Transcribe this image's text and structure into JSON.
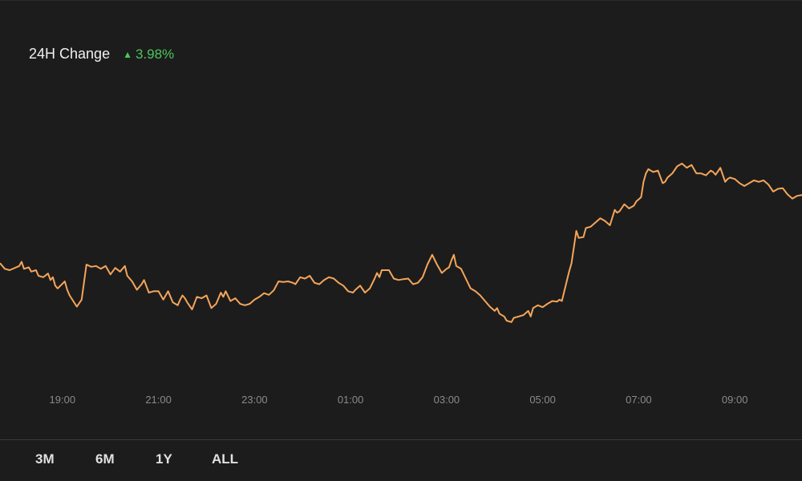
{
  "colors": {
    "background": "#1c1c1c",
    "line": "#f5a55a",
    "up": "#4cc75a",
    "tick": "#8a8a8a"
  },
  "header": {
    "label": "24H Change",
    "icon": "triangle-up-icon",
    "value": "3.98%"
  },
  "range_tabs": [
    "3M",
    "6M",
    "1Y",
    "ALL"
  ],
  "chart_data": {
    "type": "line",
    "title": "",
    "xlabel": "",
    "ylabel": "",
    "grid": false,
    "x_ticks": [
      "19:00",
      "21:00",
      "23:00",
      "01:00",
      "03:00",
      "05:00",
      "07:00",
      "09:00"
    ],
    "x_tick_hours": [
      19,
      21,
      23,
      25,
      27,
      29,
      31,
      33
    ],
    "x_range_hours": [
      17.7,
      34.4
    ],
    "y_range": [
      0,
      100
    ],
    "series": [
      {
        "values": [
          [
            17.7,
            40.5
          ],
          [
            17.8,
            38.5
          ],
          [
            17.9,
            38.0
          ],
          [
            18.1,
            39.5
          ],
          [
            18.15,
            41.0
          ],
          [
            18.2,
            38.5
          ],
          [
            18.3,
            39.0
          ],
          [
            18.35,
            37.5
          ],
          [
            18.45,
            38.0
          ],
          [
            18.5,
            36.0
          ],
          [
            18.6,
            35.5
          ],
          [
            18.7,
            36.8
          ],
          [
            18.75,
            34.5
          ],
          [
            18.8,
            35.5
          ],
          [
            18.85,
            32.5
          ],
          [
            18.9,
            31.5
          ],
          [
            19.05,
            34.0
          ],
          [
            19.1,
            31.0
          ],
          [
            19.15,
            29.0
          ],
          [
            19.3,
            25.0
          ],
          [
            19.4,
            27.5
          ],
          [
            19.5,
            40.0
          ],
          [
            19.6,
            39.2
          ],
          [
            19.7,
            39.5
          ],
          [
            19.8,
            38.5
          ],
          [
            19.9,
            39.5
          ],
          [
            20.0,
            36.5
          ],
          [
            20.1,
            38.8
          ],
          [
            20.2,
            37.5
          ],
          [
            20.3,
            39.5
          ],
          [
            20.35,
            36.0
          ],
          [
            20.45,
            34.0
          ],
          [
            20.55,
            31.0
          ],
          [
            20.65,
            33.0
          ],
          [
            20.7,
            34.5
          ],
          [
            20.8,
            30.0
          ],
          [
            20.9,
            30.5
          ],
          [
            21.0,
            30.5
          ],
          [
            21.05,
            29.0
          ],
          [
            21.1,
            27.5
          ],
          [
            21.2,
            30.5
          ],
          [
            21.3,
            26.5
          ],
          [
            21.4,
            25.5
          ],
          [
            21.45,
            27.5
          ],
          [
            21.5,
            29.0
          ],
          [
            21.55,
            28.0
          ],
          [
            21.6,
            26.5
          ],
          [
            21.7,
            24.0
          ],
          [
            21.8,
            28.5
          ],
          [
            21.9,
            28.0
          ],
          [
            22.0,
            29.0
          ],
          [
            22.1,
            24.5
          ],
          [
            22.2,
            26.0
          ],
          [
            22.3,
            30.0
          ],
          [
            22.35,
            28.5
          ],
          [
            22.4,
            30.5
          ],
          [
            22.5,
            27.0
          ],
          [
            22.6,
            28.0
          ],
          [
            22.7,
            26.0
          ],
          [
            22.8,
            25.5
          ],
          [
            22.9,
            26.0
          ],
          [
            23.0,
            27.5
          ],
          [
            23.1,
            28.5
          ],
          [
            23.2,
            29.8
          ],
          [
            23.3,
            29.2
          ],
          [
            23.4,
            30.8
          ],
          [
            23.5,
            34.0
          ],
          [
            23.6,
            33.8
          ],
          [
            23.7,
            34.0
          ],
          [
            23.8,
            33.5
          ],
          [
            23.85,
            33.0
          ],
          [
            23.95,
            35.5
          ],
          [
            24.05,
            35.0
          ],
          [
            24.15,
            36.0
          ],
          [
            24.25,
            33.5
          ],
          [
            24.35,
            33.0
          ],
          [
            24.45,
            34.5
          ],
          [
            24.55,
            35.5
          ],
          [
            24.65,
            35.0
          ],
          [
            24.75,
            33.5
          ],
          [
            24.85,
            32.5
          ],
          [
            24.95,
            30.5
          ],
          [
            25.05,
            30.0
          ],
          [
            25.1,
            31.0
          ],
          [
            25.2,
            32.5
          ],
          [
            25.3,
            30.0
          ],
          [
            25.4,
            31.5
          ],
          [
            25.5,
            35.0
          ],
          [
            25.55,
            37.0
          ],
          [
            25.6,
            35.5
          ],
          [
            25.65,
            38.0
          ],
          [
            25.8,
            38.0
          ],
          [
            25.9,
            35.0
          ],
          [
            26.0,
            34.5
          ],
          [
            26.1,
            34.8
          ],
          [
            26.2,
            35.0
          ],
          [
            26.3,
            33.0
          ],
          [
            26.4,
            33.5
          ],
          [
            26.5,
            35.5
          ],
          [
            26.6,
            40.0
          ],
          [
            26.7,
            43.5
          ],
          [
            26.8,
            40.0
          ],
          [
            26.9,
            37.0
          ],
          [
            27.0,
            38.5
          ],
          [
            27.05,
            39.0
          ],
          [
            27.1,
            41.5
          ],
          [
            27.15,
            43.5
          ],
          [
            27.2,
            39.5
          ],
          [
            27.3,
            38.5
          ],
          [
            27.4,
            35.0
          ],
          [
            27.5,
            31.5
          ],
          [
            27.6,
            30.5
          ],
          [
            27.7,
            29.0
          ],
          [
            27.8,
            27.0
          ],
          [
            27.9,
            25.0
          ],
          [
            28.0,
            23.5
          ],
          [
            28.05,
            24.5
          ],
          [
            28.1,
            22.5
          ],
          [
            28.2,
            21.5
          ],
          [
            28.25,
            20.0
          ],
          [
            28.35,
            19.5
          ],
          [
            28.4,
            21.0
          ],
          [
            28.5,
            21.5
          ],
          [
            28.6,
            22.0
          ],
          [
            28.7,
            23.5
          ],
          [
            28.75,
            21.5
          ],
          [
            28.8,
            24.5
          ],
          [
            28.9,
            25.5
          ],
          [
            29.0,
            24.8
          ],
          [
            29.1,
            26.0
          ],
          [
            29.2,
            27.0
          ],
          [
            29.3,
            26.8
          ],
          [
            29.35,
            27.5
          ],
          [
            29.4,
            27.0
          ],
          [
            29.5,
            34.0
          ],
          [
            29.55,
            37.5
          ],
          [
            29.6,
            40.5
          ],
          [
            29.7,
            52.0
          ],
          [
            29.75,
            49.5
          ],
          [
            29.85,
            49.8
          ],
          [
            29.9,
            53.0
          ],
          [
            30.0,
            53.5
          ],
          [
            30.1,
            55.0
          ],
          [
            30.2,
            56.5
          ],
          [
            30.3,
            55.5
          ],
          [
            30.4,
            54.0
          ],
          [
            30.5,
            59.5
          ],
          [
            30.55,
            58.5
          ],
          [
            30.6,
            59.0
          ],
          [
            30.7,
            61.5
          ],
          [
            30.8,
            60.0
          ],
          [
            30.9,
            61.0
          ],
          [
            30.95,
            62.5
          ],
          [
            31.05,
            64.0
          ],
          [
            31.1,
            69.5
          ],
          [
            31.15,
            72.5
          ],
          [
            31.2,
            74.0
          ],
          [
            31.3,
            73.0
          ],
          [
            31.4,
            73.5
          ],
          [
            31.5,
            69.0
          ],
          [
            31.55,
            69.5
          ],
          [
            31.6,
            71.0
          ],
          [
            31.7,
            72.5
          ],
          [
            31.8,
            75.0
          ],
          [
            31.9,
            76.0
          ],
          [
            32.0,
            74.5
          ],
          [
            32.1,
            75.5
          ],
          [
            32.2,
            72.5
          ],
          [
            32.3,
            72.5
          ],
          [
            32.4,
            71.8
          ],
          [
            32.5,
            73.5
          ],
          [
            32.55,
            73.0
          ],
          [
            32.6,
            72.0
          ],
          [
            32.7,
            74.5
          ],
          [
            32.8,
            69.5
          ],
          [
            32.85,
            70.5
          ],
          [
            32.9,
            71.0
          ],
          [
            33.0,
            70.5
          ],
          [
            33.1,
            69.0
          ],
          [
            33.2,
            68.0
          ],
          [
            33.3,
            69.0
          ],
          [
            33.4,
            70.0
          ],
          [
            33.5,
            69.5
          ],
          [
            33.6,
            70.0
          ],
          [
            33.7,
            68.5
          ],
          [
            33.8,
            66.0
          ],
          [
            33.9,
            67.0
          ],
          [
            34.0,
            67.2
          ],
          [
            34.1,
            65.0
          ],
          [
            34.2,
            63.5
          ],
          [
            34.3,
            64.5
          ],
          [
            34.4,
            64.8
          ]
        ]
      }
    ]
  }
}
